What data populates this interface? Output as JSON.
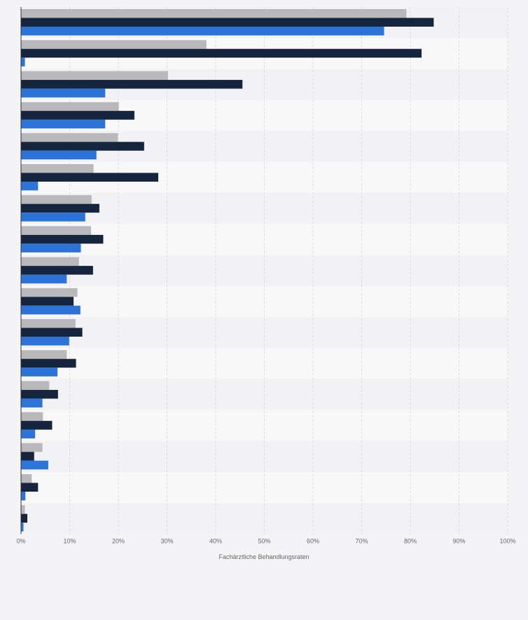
{
  "chart_data": {
    "type": "bar",
    "orientation": "horizontal",
    "xlabel": "Fachärztliche Behandlungsraten",
    "ylabel": "",
    "xlim": [
      0,
      100
    ],
    "x_ticks": [
      {
        "value": 0,
        "label": "0%"
      },
      {
        "value": 10,
        "label": "10%"
      },
      {
        "value": 20,
        "label": "20%"
      },
      {
        "value": 30,
        "label": "30%"
      },
      {
        "value": 40,
        "label": "40%"
      },
      {
        "value": 50,
        "label": "50%"
      },
      {
        "value": 60,
        "label": "60%"
      },
      {
        "value": 70,
        "label": "70%"
      },
      {
        "value": 80,
        "label": "80%"
      },
      {
        "value": 90,
        "label": "90%"
      },
      {
        "value": 100,
        "label": "100%"
      }
    ],
    "grid": true,
    "legend": "none",
    "categories": [
      "1",
      "2",
      "3",
      "4",
      "5",
      "6",
      "7",
      "8",
      "9",
      "10",
      "11",
      "12",
      "13",
      "14",
      "15",
      "16",
      "17"
    ],
    "category_labels_visible": false,
    "series": [
      {
        "color": "#b9b9bb",
        "values": [
          79.2,
          38.1,
          30.2,
          20.1,
          19.9,
          14.9,
          14.5,
          14.4,
          11.9,
          11.6,
          11.2,
          9.4,
          5.8,
          4.5,
          4.4,
          2.2,
          0.8
        ]
      },
      {
        "color": "#14253d",
        "values": [
          84.8,
          82.3,
          45.5,
          23.3,
          25.3,
          28.2,
          16.1,
          16.9,
          14.8,
          10.8,
          12.6,
          11.3,
          7.6,
          6.4,
          2.7,
          3.5,
          1.3
        ]
      },
      {
        "color": "#2c74d9",
        "values": [
          74.6,
          0.8,
          17.3,
          17.3,
          15.5,
          3.5,
          13.2,
          12.3,
          9.4,
          12.2,
          9.9,
          7.5,
          4.4,
          2.9,
          5.6,
          0.9,
          0.5
        ]
      }
    ]
  }
}
